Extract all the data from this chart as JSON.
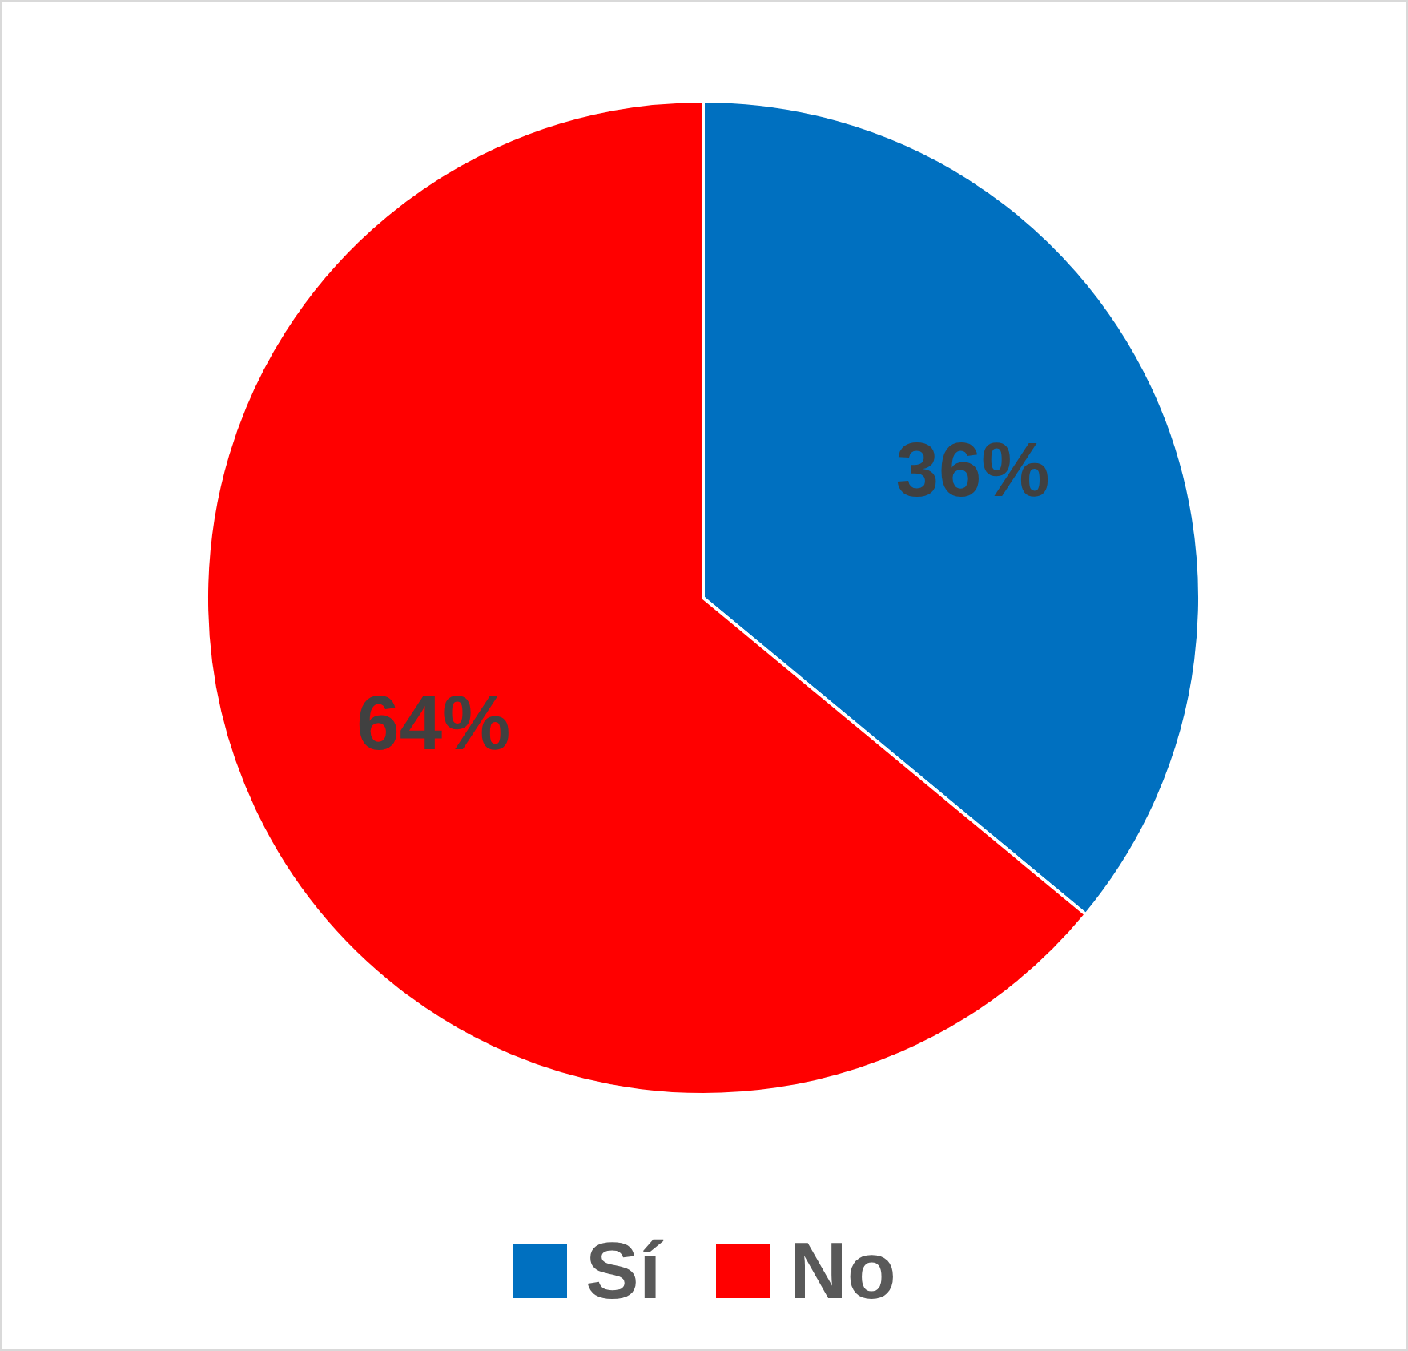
{
  "chart_data": {
    "type": "pie",
    "categories": [
      "Sí",
      "No"
    ],
    "values": [
      36,
      64
    ],
    "colors": [
      "#0070c0",
      "#ff0000"
    ],
    "value_labels": [
      "36%",
      "64%"
    ],
    "legend": "bottom"
  }
}
